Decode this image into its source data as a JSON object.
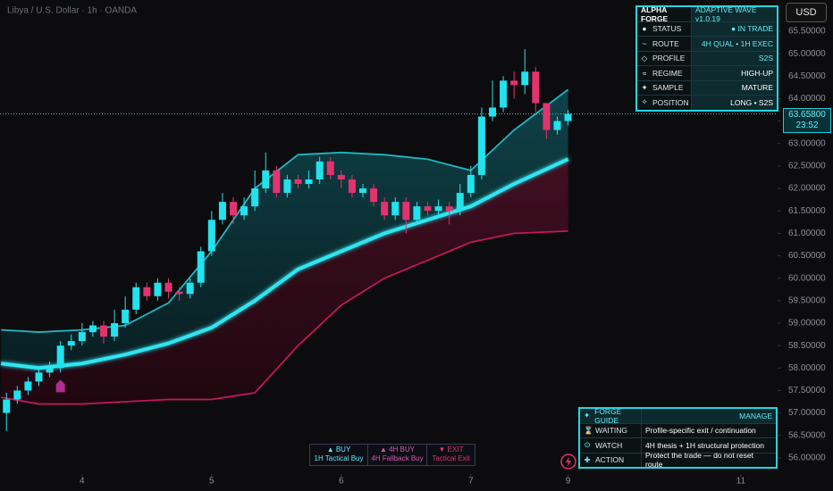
{
  "chart_data": {
    "type": "candlestick",
    "title": "Libya / U.S. Dollar · 1h · OANDA",
    "x": [
      -14,
      -12,
      -10,
      -8,
      -6,
      -4,
      -2,
      0,
      2,
      4,
      6,
      8,
      10,
      12,
      14,
      16,
      18,
      20,
      22,
      24,
      26,
      28,
      30,
      32,
      34,
      36,
      38,
      40,
      42,
      44,
      46,
      48,
      50,
      52,
      54,
      56,
      58,
      60,
      62,
      64,
      66,
      68,
      70,
      72,
      74,
      76,
      78,
      80,
      82,
      84,
      86,
      88,
      90
    ],
    "open": [
      57.0,
      57.3,
      57.5,
      57.7,
      57.9,
      58.0,
      58.5,
      58.6,
      58.8,
      58.95,
      58.7,
      59.0,
      59.3,
      59.8,
      59.6,
      59.9,
      59.7,
      59.65,
      59.9,
      60.6,
      61.3,
      61.7,
      61.4,
      61.6,
      62.0,
      62.4,
      61.9,
      62.2,
      62.1,
      62.2,
      62.6,
      62.3,
      62.2,
      61.9,
      62.0,
      61.7,
      61.4,
      61.7,
      61.3,
      61.6,
      61.5,
      61.6,
      61.5,
      61.9,
      62.3,
      63.6,
      63.8,
      64.4,
      64.3,
      64.6,
      63.9,
      63.3,
      63.5
    ],
    "high": [
      57.45,
      57.6,
      57.8,
      58.0,
      58.15,
      58.6,
      58.75,
      59.0,
      59.05,
      59.05,
      59.3,
      59.6,
      59.9,
      59.9,
      60.0,
      60.0,
      59.8,
      60.0,
      60.7,
      61.5,
      61.9,
      61.8,
      61.8,
      62.4,
      62.8,
      62.5,
      62.3,
      62.3,
      62.4,
      62.7,
      62.7,
      62.4,
      62.3,
      62.1,
      62.1,
      61.8,
      61.8,
      61.8,
      61.7,
      61.7,
      61.75,
      61.7,
      62.1,
      62.5,
      63.8,
      64.4,
      64.5,
      64.6,
      65.1,
      64.7,
      63.9,
      63.6,
      63.75
    ],
    "low": [
      56.6,
      57.2,
      57.4,
      57.6,
      57.8,
      57.9,
      58.4,
      58.5,
      58.7,
      58.55,
      58.6,
      58.9,
      59.2,
      59.5,
      59.5,
      59.55,
      59.5,
      59.55,
      59.8,
      60.5,
      61.2,
      61.2,
      61.3,
      61.5,
      61.9,
      61.8,
      61.8,
      62.0,
      62.0,
      62.1,
      62.2,
      62.0,
      61.8,
      61.8,
      61.6,
      61.3,
      61.3,
      61.0,
      61.2,
      61.4,
      61.4,
      61.2,
      61.4,
      61.8,
      62.2,
      63.5,
      63.7,
      64.0,
      64.1,
      63.7,
      63.1,
      63.2,
      63.4
    ],
    "close": [
      57.3,
      57.5,
      57.7,
      57.9,
      58.0,
      58.5,
      58.6,
      58.8,
      58.95,
      58.7,
      59.0,
      59.3,
      59.8,
      59.6,
      59.9,
      59.7,
      59.65,
      59.9,
      60.6,
      61.3,
      61.7,
      61.4,
      61.6,
      62.0,
      62.4,
      61.9,
      62.2,
      62.1,
      62.2,
      62.6,
      62.3,
      62.2,
      61.9,
      62.0,
      61.7,
      61.4,
      61.7,
      61.3,
      61.6,
      61.5,
      61.6,
      61.5,
      61.9,
      62.3,
      63.6,
      63.8,
      64.4,
      64.3,
      64.6,
      63.9,
      63.3,
      63.5,
      63.66
    ],
    "up_color": "#22e2ee",
    "down_color": "#e2336f",
    "band_x": [
      -15,
      -8,
      0,
      8,
      16,
      24,
      32,
      40,
      48,
      56,
      64,
      72,
      80,
      90
    ],
    "bands": [
      {
        "color": "#1fb7c4",
        "values": [
          58.85,
          58.8,
          58.85,
          58.95,
          59.45,
          60.6,
          62.0,
          62.75,
          62.8,
          62.75,
          62.65,
          62.4,
          63.3,
          64.2
        ]
      },
      {
        "color": "#2ee6f2",
        "values": [
          58.1,
          58.0,
          58.1,
          58.3,
          58.55,
          58.9,
          59.5,
          60.2,
          60.6,
          61.0,
          61.3,
          61.6,
          62.1,
          62.65
        ]
      },
      {
        "color": "#c2185b",
        "values": [
          57.35,
          57.2,
          57.2,
          57.25,
          57.3,
          57.3,
          57.45,
          58.5,
          59.4,
          60.0,
          60.4,
          60.8,
          61.0,
          61.05
        ]
      }
    ],
    "signals": [
      {
        "x": -4,
        "y": 57.6,
        "color": "#b02e8f"
      }
    ],
    "last_price": {
      "value": 63.658,
      "label": "63.65800"
    },
    "countdown": "23:52",
    "xlim": [
      -15.2,
      128.8
    ],
    "xticks": [
      {
        "value": 0,
        "label": "4"
      },
      {
        "value": 24,
        "label": "5"
      },
      {
        "value": 48,
        "label": "6"
      },
      {
        "value": 72,
        "label": "7"
      },
      {
        "value": 90,
        "label": "9"
      },
      {
        "value": 122,
        "label": "11"
      }
    ],
    "ylim": [
      55.72,
      66.195
    ],
    "yticks": [
      {
        "value": 56,
        "label": "56.00000"
      },
      {
        "value": 56.5,
        "label": "56.50000"
      },
      {
        "value": 57,
        "label": "57.00000"
      },
      {
        "value": 57.5,
        "label": "57.50000"
      },
      {
        "value": 58,
        "label": "58.00000"
      },
      {
        "value": 58.5,
        "label": "58.50000"
      },
      {
        "value": 59,
        "label": "59.00000"
      },
      {
        "value": 59.5,
        "label": "59.50000"
      },
      {
        "value": 60,
        "label": "60.00000"
      },
      {
        "value": 60.5,
        "label": "60.50000"
      },
      {
        "value": 61,
        "label": "61.00000"
      },
      {
        "value": 61.5,
        "label": "61.50000"
      },
      {
        "value": 62,
        "label": "62.00000"
      },
      {
        "value": 62.5,
        "label": "62.50000"
      },
      {
        "value": 63,
        "label": "63.00000"
      },
      {
        "value": 63.5,
        "label": "63.50000"
      },
      {
        "value": 64,
        "label": "64.00000"
      },
      {
        "value": 64.5,
        "label": "64.50000"
      },
      {
        "value": 65,
        "label": "65.00000"
      },
      {
        "value": 65.5,
        "label": "65.50000"
      }
    ]
  },
  "currency_button": "USD",
  "status_panel": {
    "header": [
      "ALPHA FORGE",
      "ADAPTIVE WAVE v1.0.19"
    ],
    "rows": [
      [
        "●",
        "STATUS",
        "● IN TRADE"
      ],
      [
        "~",
        "ROUTE",
        "4H QUAL • 1H EXEC"
      ],
      [
        "◇",
        "PROFILE",
        "S2S"
      ],
      [
        "≈",
        "REGIME",
        "HIGH-UP"
      ],
      [
        "✦",
        "SAMPLE",
        "MATURE"
      ],
      [
        "✧",
        "POSITION",
        "LONG • S2S"
      ]
    ]
  },
  "guide_panel": {
    "rows": [
      [
        "✦",
        "FORGE GUIDE",
        "MANAGE"
      ],
      [
        "⌛",
        "WAITING",
        "Profile-specific exit / continuation"
      ],
      [
        "⊙",
        "WATCH",
        "4H thesis + 1H structural protection"
      ],
      [
        "✚",
        "ACTION",
        "Protect the trade — do not reset route"
      ]
    ]
  },
  "legend_boxes": [
    [
      "▲ BUY",
      "1H Tactical Buy"
    ],
    [
      "▲ 4H BUY",
      "4H Fallback Buy"
    ],
    [
      "▼ EXIT",
      "Tactical Exit"
    ]
  ]
}
